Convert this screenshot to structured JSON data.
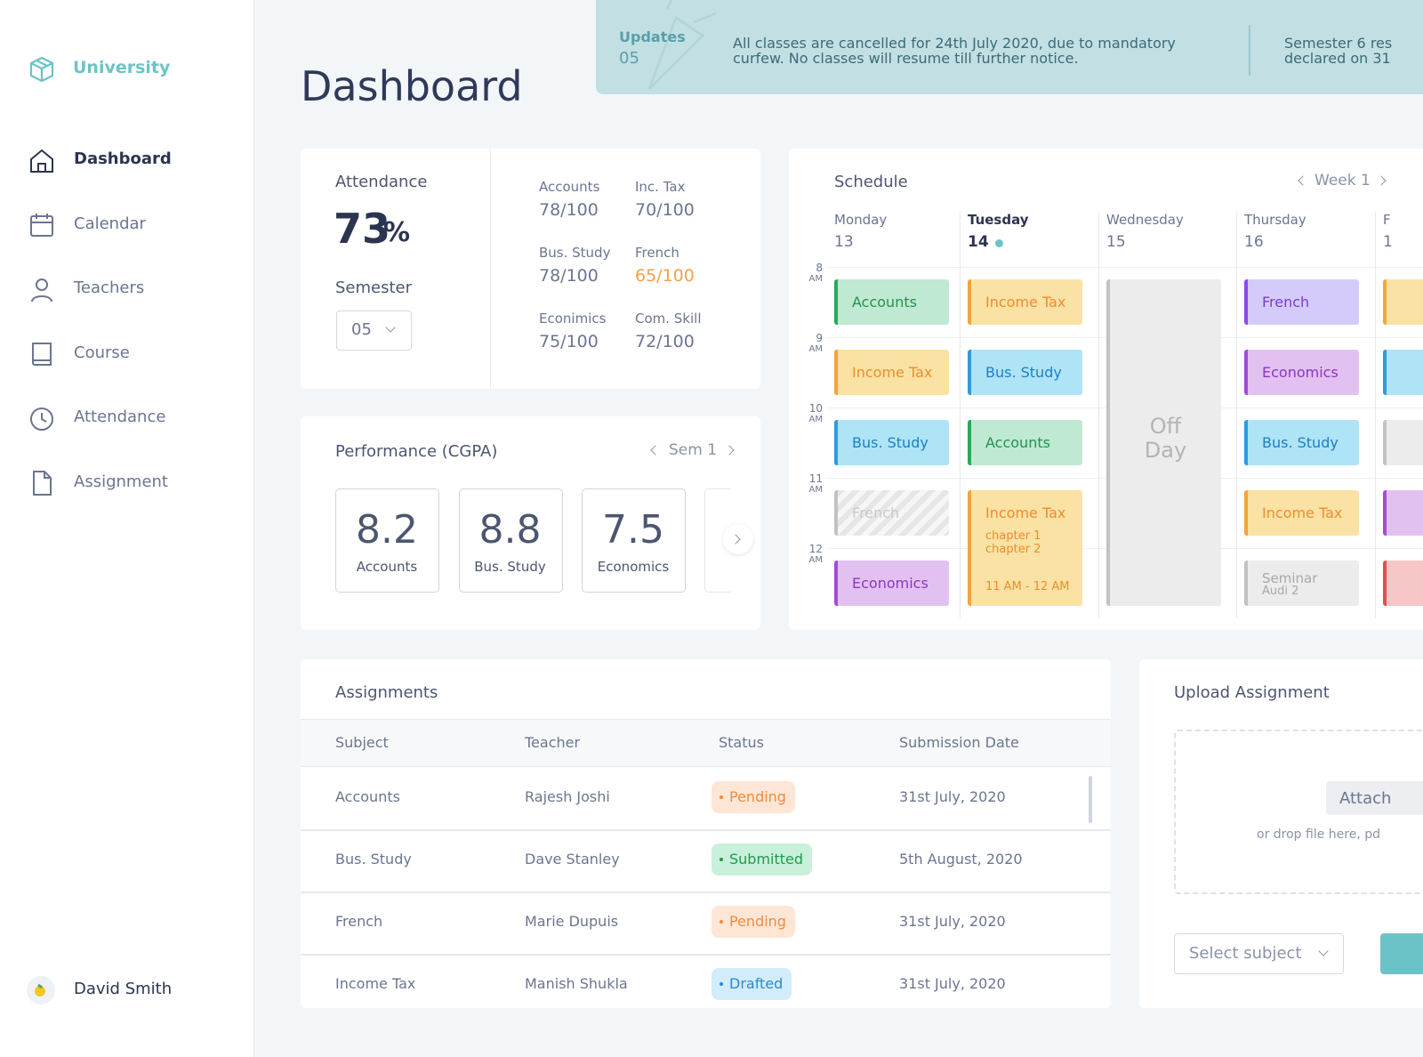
{
  "sidebar": {
    "brand": "University",
    "nav": [
      "Dashboard",
      "Calendar",
      "Teachers",
      "Course",
      "Attendance",
      "Assignment"
    ],
    "active": 0,
    "user": "David Smith"
  },
  "header": {
    "title": "Dashboard"
  },
  "updates": {
    "label": "Updates",
    "count": "05",
    "messages": [
      [
        "All classes are cancelled for 24th July 2020, due to mandatory",
        "curfew. No classes will resume till further notice."
      ],
      [
        "Semester 6 res",
        "declared on 31"
      ]
    ]
  },
  "attendance": {
    "title": "Attendance",
    "value": "73",
    "unit": "%",
    "semester_label": "Semester",
    "semester": "05",
    "marks": [
      {
        "subject": "Accounts",
        "score": "78/100"
      },
      {
        "subject": "Inc. Tax",
        "score": "70/100"
      },
      {
        "subject": "Bus. Study",
        "score": "78/100"
      },
      {
        "subject": "French",
        "score": "65/100",
        "color": "#f5a04a"
      },
      {
        "subject": "Econimics",
        "score": "75/100"
      },
      {
        "subject": "Com. Skill",
        "score": "72/100"
      }
    ]
  },
  "performance": {
    "title": "Performance (CGPA)",
    "period": "Sem 1",
    "cards": [
      {
        "score": "8.2",
        "subject": "Accounts"
      },
      {
        "score": "8.8",
        "subject": "Bus. Study"
      },
      {
        "score": "7.5",
        "subject": "Economics"
      }
    ]
  },
  "schedule": {
    "title": "Schedule",
    "week": "Week 1",
    "times": [
      {
        "hour": "8",
        "period": "AM"
      },
      {
        "hour": "9",
        "period": "AM"
      },
      {
        "hour": "10",
        "period": "AM"
      },
      {
        "hour": "11",
        "period": "AM"
      },
      {
        "hour": "12",
        "period": "AM"
      }
    ],
    "palette": {
      "green": [
        "#bfe9d2",
        "#27a85a",
        "#23924e"
      ],
      "orange": [
        "#f9e2a3",
        "#f5a33b",
        "#f08c2e"
      ],
      "blue": [
        "#aee4f6",
        "#2e9be0",
        "#1d7fc4"
      ],
      "violet": [
        "#d5cbfb",
        "#8b4ae6",
        "#7a3bd8"
      ],
      "purple": [
        "#e2c1f1",
        "#a24bd8",
        "#8c35c2"
      ],
      "grey": [
        "#ececec",
        "#c2c2c2",
        "#a8a8a8"
      ],
      "red": [
        "#f7c6c6",
        "#e84a4a",
        "#d03838"
      ]
    },
    "days": [
      {
        "name": "Monday",
        "date": "13",
        "events": [
          {
            "slot": 0,
            "span": 1,
            "style": "green",
            "subject": "Accounts"
          },
          {
            "slot": 1,
            "span": 1,
            "style": "orange",
            "subject": "Income Tax"
          },
          {
            "slot": 2,
            "span": 1,
            "style": "blue",
            "subject": "Bus. Study"
          },
          {
            "slot": 3,
            "span": 1,
            "style": "grey",
            "subject": "French",
            "cancelled": true
          },
          {
            "slot": 4,
            "span": 1,
            "style": "purple",
            "subject": "Economics"
          }
        ]
      },
      {
        "name": "Tuesday",
        "date": "14",
        "today": true,
        "events": [
          {
            "slot": 0,
            "span": 1,
            "style": "orange",
            "subject": "Income Tax"
          },
          {
            "slot": 1,
            "span": 1,
            "style": "blue",
            "subject": "Bus. Study"
          },
          {
            "slot": 2,
            "span": 1,
            "style": "green",
            "subject": "Accounts"
          },
          {
            "slot": 3,
            "span": 2,
            "style": "orange",
            "subject": "Income Tax",
            "notes": [
              "chapter 1",
              "chapter 2"
            ],
            "time": "11 AM - 12 AM"
          }
        ]
      },
      {
        "name": "Wednesday",
        "date": "15",
        "events": [
          {
            "slot": 0,
            "span": 5,
            "style": "grey",
            "subject": "Off Day",
            "large": true
          }
        ]
      },
      {
        "name": "Thursday",
        "date": "16",
        "events": [
          {
            "slot": 0,
            "span": 1,
            "style": "violet",
            "subject": "French"
          },
          {
            "slot": 1,
            "span": 1,
            "style": "purple",
            "subject": "Economics"
          },
          {
            "slot": 2,
            "span": 1,
            "style": "blue",
            "subject": "Bus. Study"
          },
          {
            "slot": 3,
            "span": 1,
            "style": "orange",
            "subject": "Income Tax"
          },
          {
            "slot": 4,
            "span": 1,
            "style": "grey",
            "subject": "Seminar",
            "notes": [
              "Audi 2"
            ]
          }
        ]
      },
      {
        "name": "F",
        "date": "1",
        "events": [
          {
            "slot": 0,
            "span": 1,
            "style": "orange"
          },
          {
            "slot": 1,
            "span": 1,
            "style": "blue"
          },
          {
            "slot": 2,
            "span": 1,
            "style": "grey"
          },
          {
            "slot": 3,
            "span": 1,
            "style": "purple"
          },
          {
            "slot": 4,
            "span": 1,
            "style": "red"
          }
        ]
      }
    ]
  },
  "assignments": {
    "title": "Assignments",
    "columns": [
      "Subject",
      "Teacher",
      "Status",
      "Submission Date"
    ],
    "status_styles": {
      "Pending": [
        "#fde6d6",
        "#f08a3c"
      ],
      "Submitted": [
        "#c9f0da",
        "#1f9a4f"
      ],
      "Drafted": [
        "#d2ecfa",
        "#2a8ad0"
      ]
    },
    "rows": [
      [
        "Accounts",
        "Rajesh Joshi",
        "Pending",
        "31st July, 2020"
      ],
      [
        "Bus. Study",
        "Dave Stanley",
        "Submitted",
        "5th August, 2020"
      ],
      [
        "French",
        "Marie Dupuis",
        "Pending",
        "31st July, 2020"
      ],
      [
        "Income Tax",
        "Manish Shukla",
        "Drafted",
        "31st July, 2020"
      ]
    ]
  },
  "upload": {
    "title": "Upload Assignment",
    "button": "Attach",
    "hint": "or drop file here, pd",
    "select": "Select subject"
  }
}
